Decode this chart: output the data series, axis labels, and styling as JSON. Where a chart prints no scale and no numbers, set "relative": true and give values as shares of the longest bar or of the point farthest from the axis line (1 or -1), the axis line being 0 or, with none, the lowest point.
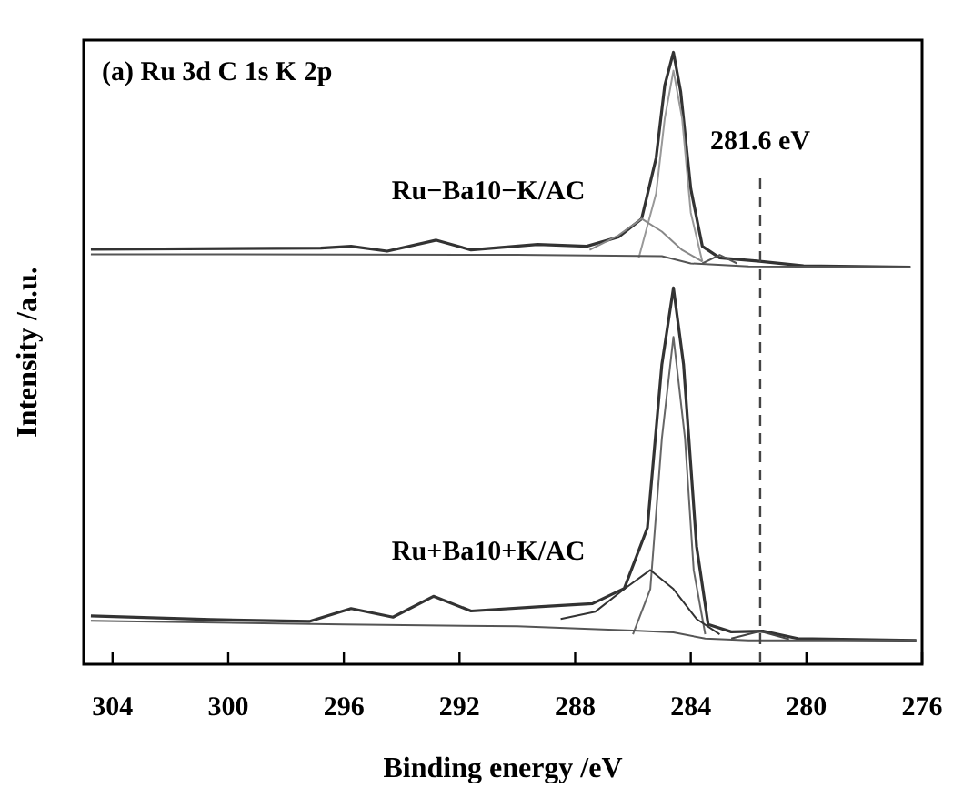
{
  "chart_data": {
    "type": "line",
    "relative": true,
    "title": "(a) Ru 3d C 1s K 2p",
    "xlabel": "Binding energy /eV",
    "ylabel": "Intensity /a.u.",
    "xlim": [
      305,
      276
    ],
    "xticks": [
      304,
      300,
      296,
      292,
      288,
      284,
      280,
      276
    ],
    "grid": false,
    "legend": false,
    "marker": "none",
    "line_style": "solid",
    "ref_lines": [
      {
        "axis": "x",
        "value": 281.6,
        "label": "281.6 eV",
        "line_style": "dashed",
        "color": "#444444"
      }
    ],
    "series": [
      {
        "name": "Ru−Ba10−K/AC",
        "color": "#333333",
        "x": [
          304.75,
          296.8,
          295.75,
          294.5,
          292.8,
          291.6,
          289.3,
          287.6,
          286.5,
          285.7,
          285.2,
          284.9,
          284.6,
          284.35,
          284.0,
          283.6,
          283.0,
          281.7,
          280.1,
          276.4
        ],
        "values": [
          0.678,
          0.68,
          0.683,
          0.675,
          0.693,
          0.677,
          0.686,
          0.683,
          0.698,
          0.728,
          0.827,
          0.946,
          1,
          0.936,
          0.777,
          0.683,
          0.664,
          0.659,
          0.651,
          0.649
        ]
      },
      {
        "color": "#999999",
        "x": [
          285.8,
          285.2,
          284.9,
          284.6,
          284.3,
          284.0,
          283.6
        ],
        "values": [
          0.664,
          0.769,
          0.892,
          0.97,
          0.892,
          0.738,
          0.658
        ]
      },
      {
        "color": "#888888",
        "x": [
          287.5,
          286.5,
          285.7,
          285.0,
          284.3,
          283.6
        ],
        "values": [
          0.677,
          0.701,
          0.728,
          0.707,
          0.677,
          0.658
        ]
      },
      {
        "color": "#555555",
        "x": [
          283.6,
          283.0,
          282.4
        ],
        "values": [
          0.655,
          0.669,
          0.655
        ]
      },
      {
        "color": "#555555",
        "x": [
          304.75,
          290,
          285,
          284,
          282,
          276.4
        ],
        "values": [
          0.67,
          0.669,
          0.667,
          0.655,
          0.65,
          0.649
        ]
      },
      {
        "name": "Ru+Ba10+K/AC",
        "color": "#333333",
        "x": [
          304.75,
          300.6,
          297.2,
          295.75,
          294.3,
          292.9,
          291.6,
          289.3,
          287.4,
          286.3,
          285.5,
          285.0,
          284.6,
          284.25,
          283.8,
          283.4,
          282.6,
          281.5,
          280.3,
          276.2
        ],
        "values": [
          0.079,
          0.073,
          0.07,
          0.091,
          0.077,
          0.111,
          0.087,
          0.094,
          0.099,
          0.124,
          0.223,
          0.49,
          0.615,
          0.49,
          0.193,
          0.065,
          0.053,
          0.054,
          0.042,
          0.039
        ]
      },
      {
        "color": "#666666",
        "x": [
          286.0,
          285.4,
          285.0,
          284.6,
          284.2,
          283.9,
          283.5
        ],
        "values": [
          0.049,
          0.123,
          0.369,
          0.535,
          0.369,
          0.154,
          0.049
        ]
      },
      {
        "color": "#333333",
        "x": [
          288.5,
          287.3,
          286.3,
          285.4,
          284.6,
          283.8,
          283.0
        ],
        "values": [
          0.074,
          0.086,
          0.123,
          0.154,
          0.123,
          0.074,
          0.049
        ]
      },
      {
        "color": "#444444",
        "x": [
          282.6,
          281.6,
          280.6
        ],
        "values": [
          0.042,
          0.054,
          0.041
        ]
      },
      {
        "color": "#555555",
        "x": [
          304.75,
          296,
          290,
          286,
          284.6,
          283.5,
          282,
          276.2
        ],
        "values": [
          0.071,
          0.065,
          0.062,
          0.055,
          0.052,
          0.042,
          0.039,
          0.039
        ]
      }
    ]
  }
}
